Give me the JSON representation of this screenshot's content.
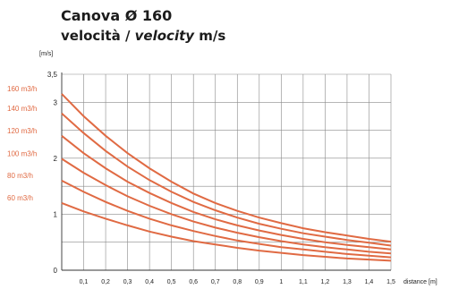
{
  "header": {
    "title": "Canova Ø 160",
    "subtitle_main": "velocità / ",
    "subtitle_italic": "velocity",
    "subtitle_unit": " m/s"
  },
  "chart_data": {
    "type": "line",
    "title": "Canova Ø 160",
    "subtitle": "velocità / velocity m/s",
    "ylabel": "[m/s]",
    "xlabel": "distance [m]",
    "xlim": [
      0,
      1.5
    ],
    "ylim": [
      0,
      3.5
    ],
    "x_ticks": [
      "0,1",
      "0,2",
      "0,3",
      "0,4",
      "0,5",
      "0,6",
      "0,7",
      "0,8",
      "0,9",
      "1",
      "1,1",
      "1,2",
      "1,3",
      "1,4",
      "1,5"
    ],
    "y_ticks": [
      "0",
      "1",
      "2",
      "3",
      "3,5"
    ],
    "grid": true,
    "line_color": "#e06a43",
    "x": [
      0,
      0.1,
      0.2,
      0.3,
      0.4,
      0.5,
      0.6,
      0.7,
      0.8,
      0.9,
      1.0,
      1.1,
      1.2,
      1.3,
      1.4,
      1.5
    ],
    "series": [
      {
        "name": "160 m3/h",
        "values": [
          3.15,
          2.75,
          2.4,
          2.09,
          1.82,
          1.58,
          1.37,
          1.2,
          1.06,
          0.94,
          0.84,
          0.75,
          0.68,
          0.62,
          0.56,
          0.51
        ]
      },
      {
        "name": "140 m3/h",
        "values": [
          2.8,
          2.45,
          2.13,
          1.85,
          1.61,
          1.4,
          1.22,
          1.07,
          0.94,
          0.83,
          0.74,
          0.66,
          0.6,
          0.54,
          0.49,
          0.44
        ]
      },
      {
        "name": "120 m3/h",
        "values": [
          2.4,
          2.09,
          1.82,
          1.58,
          1.38,
          1.2,
          1.04,
          0.91,
          0.8,
          0.71,
          0.63,
          0.56,
          0.5,
          0.45,
          0.41,
          0.37
        ]
      },
      {
        "name": "100 m3/h",
        "values": [
          1.99,
          1.74,
          1.52,
          1.32,
          1.15,
          1.0,
          0.87,
          0.76,
          0.67,
          0.59,
          0.52,
          0.46,
          0.41,
          0.37,
          0.33,
          0.3
        ]
      },
      {
        "name": "80 m3/h",
        "values": [
          1.6,
          1.4,
          1.22,
          1.06,
          0.92,
          0.8,
          0.7,
          0.61,
          0.53,
          0.47,
          0.41,
          0.37,
          0.33,
          0.29,
          0.26,
          0.23
        ]
      },
      {
        "name": "60 m3/h",
        "values": [
          1.2,
          1.05,
          0.92,
          0.8,
          0.69,
          0.6,
          0.52,
          0.46,
          0.4,
          0.35,
          0.31,
          0.27,
          0.24,
          0.21,
          0.19,
          0.17
        ]
      }
    ]
  }
}
